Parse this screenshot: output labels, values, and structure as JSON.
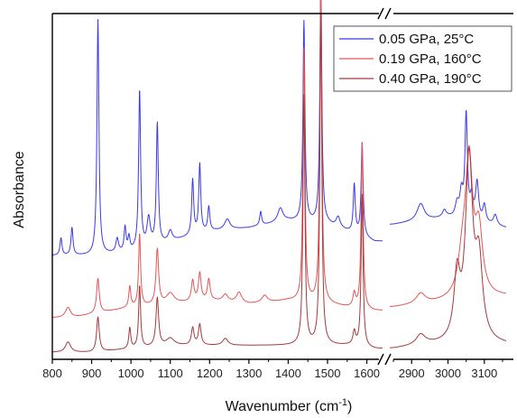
{
  "chart_data": {
    "type": "line",
    "xlabel": "Wavenumber (cm",
    "xlabel_sup": "-1",
    "xlabel_end": ")",
    "ylabel": "Absorbance",
    "axis_break": true,
    "x_ranges": [
      [
        800,
        1640
      ],
      [
        2840,
        3160
      ]
    ],
    "x_ticks": [
      {
        "v": 800,
        "label": "800"
      },
      {
        "v": 900,
        "label": "900"
      },
      {
        "v": 1000,
        "label": "1000"
      },
      {
        "v": 1100,
        "label": "1100"
      },
      {
        "v": 1200,
        "label": "1200"
      },
      {
        "v": 1300,
        "label": "1300"
      },
      {
        "v": 1400,
        "label": "1400"
      },
      {
        "v": 1500,
        "label": "1500"
      },
      {
        "v": 1600,
        "label": "1600"
      },
      {
        "v": 2900,
        "label": "2900"
      },
      {
        "v": 3000,
        "label": "3000"
      },
      {
        "v": 3100,
        "label": "3100"
      }
    ],
    "y_range": [
      0,
      1
    ],
    "y_ticks_shown": false,
    "legend_position": "top-right",
    "series": [
      {
        "name": "0.05 GPa, 25°C",
        "color": "#3a3ae8",
        "baseline": [
          [
            800,
            0.3
          ],
          [
            900,
            0.3
          ],
          [
            1000,
            0.31
          ],
          [
            1100,
            0.34
          ],
          [
            1200,
            0.37
          ],
          [
            1300,
            0.38
          ],
          [
            1400,
            0.4
          ],
          [
            1500,
            0.39
          ],
          [
            1550,
            0.37
          ],
          [
            1620,
            0.34
          ],
          [
            2850,
            0.39
          ],
          [
            3000,
            0.41
          ],
          [
            3160,
            0.38
          ]
        ],
        "peaks": [
          [
            822,
            0.05,
            3
          ],
          [
            850,
            0.08,
            3
          ],
          [
            916,
            0.68,
            3
          ],
          [
            965,
            0.04,
            4
          ],
          [
            985,
            0.07,
            3
          ],
          [
            995,
            0.04,
            3
          ],
          [
            1022,
            0.46,
            3
          ],
          [
            1045,
            0.08,
            5
          ],
          [
            1067,
            0.35,
            3
          ],
          [
            1100,
            0.03,
            6
          ],
          [
            1157,
            0.16,
            3
          ],
          [
            1175,
            0.2,
            3
          ],
          [
            1198,
            0.07,
            3
          ],
          [
            1245,
            0.03,
            8
          ],
          [
            1330,
            0.04,
            3
          ],
          [
            1380,
            0.04,
            8
          ],
          [
            1440,
            0.58,
            3
          ],
          [
            1483,
            0.69,
            3
          ],
          [
            1527,
            0.03,
            6
          ],
          [
            1568,
            0.14,
            3
          ],
          [
            1588,
            0.27,
            3
          ],
          [
            2925,
            0.05,
            12
          ],
          [
            2990,
            0.02,
            6
          ],
          [
            3025,
            0.04,
            6
          ],
          [
            3037,
            0.07,
            5
          ],
          [
            3050,
            0.3,
            4
          ],
          [
            3065,
            0.06,
            5
          ],
          [
            3080,
            0.11,
            5
          ],
          [
            3100,
            0.05,
            5
          ],
          [
            3130,
            0.03,
            6
          ]
        ]
      },
      {
        "name": "0.19 GPa, 160°C",
        "color": "#e65454",
        "baseline": [
          [
            800,
            0.12
          ],
          [
            850,
            0.12
          ],
          [
            900,
            0.13
          ],
          [
            1000,
            0.15
          ],
          [
            1100,
            0.16
          ],
          [
            1200,
            0.17
          ],
          [
            1300,
            0.16
          ],
          [
            1400,
            0.17
          ],
          [
            1500,
            0.16
          ],
          [
            1550,
            0.15
          ],
          [
            1620,
            0.14
          ],
          [
            2850,
            0.15
          ],
          [
            2950,
            0.16
          ],
          [
            3160,
            0.18
          ]
        ],
        "peaks": [
          [
            840,
            0.03,
            8
          ],
          [
            916,
            0.1,
            4
          ],
          [
            997,
            0.06,
            3
          ],
          [
            1022,
            0.21,
            3
          ],
          [
            1067,
            0.16,
            4
          ],
          [
            1100,
            0.03,
            12
          ],
          [
            1157,
            0.06,
            4
          ],
          [
            1175,
            0.08,
            4
          ],
          [
            1198,
            0.06,
            4
          ],
          [
            1240,
            0.02,
            8
          ],
          [
            1275,
            0.03,
            8
          ],
          [
            1340,
            0.02,
            8
          ],
          [
            1440,
            0.73,
            3
          ],
          [
            1483,
            0.96,
            3
          ],
          [
            1568,
            0.04,
            4
          ],
          [
            1588,
            0.48,
            3
          ],
          [
            2925,
            0.03,
            15
          ],
          [
            3040,
            0.1,
            14
          ],
          [
            3058,
            0.38,
            12
          ],
          [
            3085,
            0.18,
            12
          ]
        ]
      },
      {
        "name": "0.40 GPa, 190°C",
        "color": "#a43a3a",
        "baseline": [
          [
            800,
            0.02
          ],
          [
            900,
            0.02
          ],
          [
            1000,
            0.03
          ],
          [
            1100,
            0.04
          ],
          [
            1200,
            0.04
          ],
          [
            1300,
            0.04
          ],
          [
            1400,
            0.04
          ],
          [
            1500,
            0.04
          ],
          [
            1550,
            0.04
          ],
          [
            1620,
            0.03
          ],
          [
            2850,
            0.03
          ],
          [
            2950,
            0.04
          ],
          [
            3160,
            0.04
          ]
        ],
        "peaks": [
          [
            840,
            0.03,
            8
          ],
          [
            916,
            0.1,
            4
          ],
          [
            997,
            0.06,
            3
          ],
          [
            1022,
            0.18,
            3
          ],
          [
            1067,
            0.14,
            4
          ],
          [
            1100,
            0.02,
            12
          ],
          [
            1157,
            0.05,
            4
          ],
          [
            1175,
            0.06,
            4
          ],
          [
            1240,
            0.02,
            8
          ],
          [
            1440,
            0.72,
            3
          ],
          [
            1483,
            0.96,
            3
          ],
          [
            1568,
            0.04,
            4
          ],
          [
            1588,
            0.44,
            3
          ],
          [
            2925,
            0.03,
            15
          ],
          [
            3025,
            0.18,
            10
          ],
          [
            3058,
            0.52,
            12
          ],
          [
            3085,
            0.22,
            12
          ]
        ]
      }
    ]
  }
}
